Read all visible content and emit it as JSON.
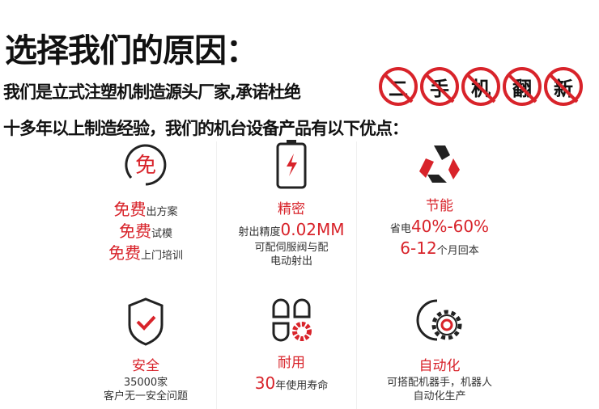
{
  "header": {
    "title": "选择我们的原因：",
    "line2": "我们是立式注塑机制造源头厂家,承诺杜绝",
    "banned_chars": [
      "二",
      "手",
      "机",
      "翻",
      "新"
    ],
    "line3": "十多年以上制造经验，我们的机台设备产品有以下优点："
  },
  "colors": {
    "accent": "#d8232a",
    "text": "#111111"
  },
  "features": [
    {
      "icon": "free-circle-icon",
      "icon_text": "免",
      "lines": [
        {
          "red": "免费",
          "rest": "出方案"
        },
        {
          "red": "免费",
          "rest": "试模"
        },
        {
          "red": "免费",
          "rest": "上门培训"
        }
      ]
    },
    {
      "icon": "battery-icon",
      "title": "精密",
      "l1a": "射出精度",
      "l1b": "0.02MM",
      "l2": "可配伺服阀与配",
      "l3": "电动射出"
    },
    {
      "icon": "recycle-icon",
      "title": "节能",
      "l1a": "省电",
      "l1b": "40%-60%",
      "l2a": "6-12",
      "l2b": "个月回本"
    },
    {
      "icon": "shield-check-icon",
      "title": "安全",
      "l1": "35000家",
      "l2": "客户无一安全问题"
    },
    {
      "icon": "gear-blocks-icon",
      "title": "耐用",
      "l1a": "30",
      "l1b": "年使用寿命"
    },
    {
      "icon": "automation-gear-icon",
      "title": "自动化",
      "l1": "可搭配机器手，机器人",
      "l2": "自动化生产"
    }
  ]
}
